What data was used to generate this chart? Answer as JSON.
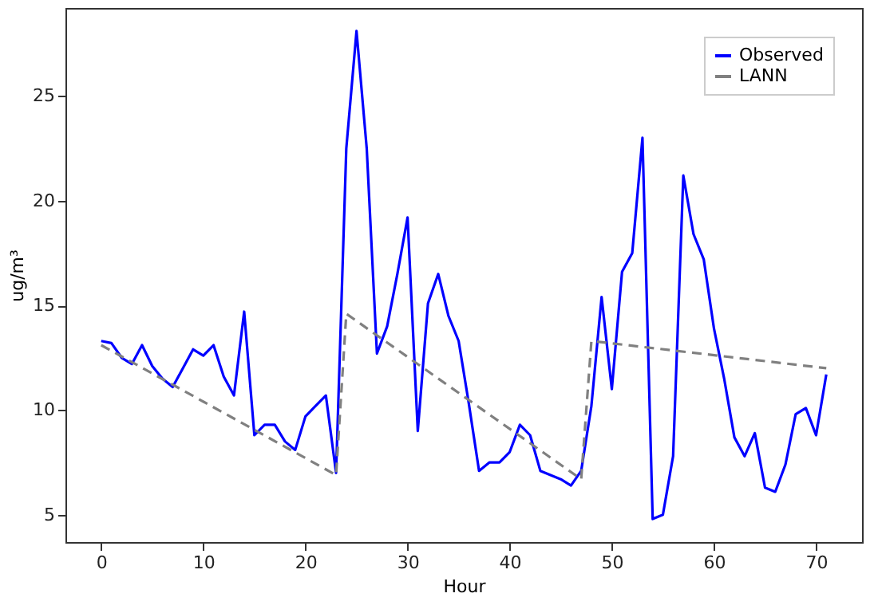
{
  "chart_data": {
    "type": "line",
    "xlabel": "Hour",
    "ylabel": "ug/m³",
    "xlim": [
      -3.5,
      74.5
    ],
    "xticks": [
      0,
      10,
      20,
      30,
      40,
      50,
      60,
      70
    ],
    "ylim": [
      3.7,
      29.2
    ],
    "yticks": [
      5,
      10,
      15,
      20,
      25
    ],
    "grid": false,
    "legend": "top right",
    "marker": "none",
    "x": [
      0,
      1,
      2,
      3,
      4,
      5,
      6,
      7,
      8,
      9,
      10,
      11,
      12,
      13,
      14,
      15,
      16,
      17,
      18,
      19,
      20,
      21,
      22,
      23,
      24,
      25,
      26,
      27,
      28,
      29,
      30,
      31,
      32,
      33,
      34,
      35,
      36,
      37,
      38,
      39,
      40,
      41,
      42,
      43,
      44,
      45,
      46,
      47,
      48,
      49,
      50,
      51,
      52,
      53,
      54,
      55,
      56,
      57,
      58,
      59,
      60,
      61,
      62,
      63,
      64,
      65,
      66,
      67,
      68,
      69,
      70,
      71
    ],
    "series": [
      {
        "name": "Observed",
        "color": "#0000ff",
        "line_style": "solid",
        "values": [
          13.3,
          13.2,
          12.5,
          12.2,
          13.1,
          12.1,
          11.5,
          11.1,
          12.0,
          12.9,
          12.6,
          13.1,
          11.6,
          10.7,
          14.7,
          8.8,
          9.3,
          9.3,
          8.5,
          8.1,
          9.7,
          10.2,
          10.7,
          7.0,
          22.5,
          28.1,
          22.5,
          12.7,
          14.0,
          16.5,
          19.2,
          9.0,
          15.1,
          16.5,
          14.5,
          13.3,
          10.3,
          7.1,
          7.5,
          7.5,
          8.0,
          9.3,
          8.8,
          7.1,
          6.9,
          6.7,
          6.4,
          7.1,
          10.2,
          15.4,
          11.0,
          16.6,
          17.5,
          23.0,
          4.8,
          5.0,
          7.8,
          21.2,
          18.4,
          17.2,
          13.9,
          11.5,
          8.7,
          7.8,
          8.9,
          6.3,
          6.1,
          7.4,
          9.8,
          10.1,
          8.8,
          11.7
        ]
      },
      {
        "name": "LANN",
        "color": "#808080",
        "line_style": "dashed",
        "x": [
          0,
          23,
          24,
          47,
          48,
          71
        ],
        "values": [
          13.1,
          6.9,
          14.6,
          6.7,
          13.3,
          12.0
        ]
      }
    ]
  }
}
